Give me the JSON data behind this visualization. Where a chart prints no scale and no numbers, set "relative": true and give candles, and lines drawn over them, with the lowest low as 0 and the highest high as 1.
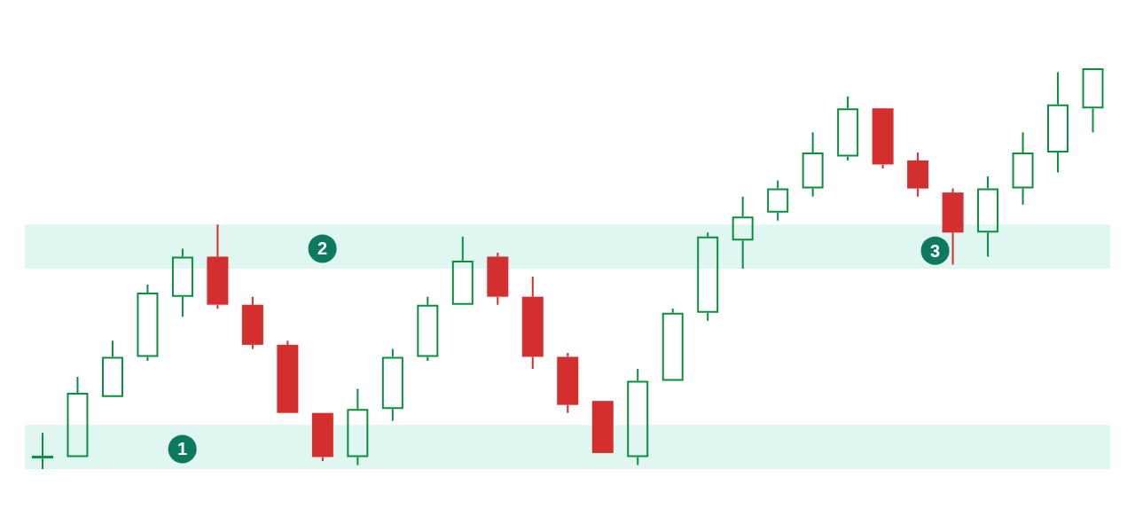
{
  "chart_data": {
    "type": "candlestick",
    "relative": true,
    "categories": [
      null,
      null,
      null,
      null,
      null,
      null,
      null,
      null,
      null,
      null,
      null,
      null,
      null,
      null,
      null,
      null,
      null,
      null,
      null,
      null,
      null,
      null,
      null,
      null,
      null,
      null,
      null,
      null,
      null,
      null,
      null
    ],
    "ohlc": [
      [
        0.03,
        0.09,
        0,
        0.03
      ],
      [
        0.03,
        0.23,
        0.03,
        0.19
      ],
      [
        0.18,
        0.32,
        0.18,
        0.28
      ],
      [
        0.28,
        0.46,
        0.27,
        0.44
      ],
      [
        0.43,
        0.55,
        0.38,
        0.53
      ],
      [
        0.53,
        0.61,
        0.4,
        0.41
      ],
      [
        0.41,
        0.43,
        0.3,
        0.31
      ],
      [
        0.31,
        0.32,
        0.14,
        0.14
      ],
      [
        0.14,
        0.14,
        0.02,
        0.03
      ],
      [
        0.03,
        0.2,
        0.01,
        0.15
      ],
      [
        0.15,
        0.3,
        0.12,
        0.28
      ],
      [
        0.28,
        0.43,
        0.27,
        0.41
      ],
      [
        0.41,
        0.58,
        0.41,
        0.52
      ],
      [
        0.53,
        0.54,
        0.41,
        0.43
      ],
      [
        0.43,
        0.48,
        0.25,
        0.28
      ],
      [
        0.28,
        0.29,
        0.14,
        0.16
      ],
      [
        0.17,
        0.17,
        0.04,
        0.04
      ],
      [
        0.03,
        0.25,
        0.01,
        0.22
      ],
      [
        0.22,
        0.4,
        0.22,
        0.39
      ],
      [
        0.39,
        0.59,
        0.37,
        0.58
      ],
      [
        0.57,
        0.68,
        0.5,
        0.63
      ],
      [
        0.64,
        0.72,
        0.62,
        0.7
      ],
      [
        0.7,
        0.84,
        0.68,
        0.79
      ],
      [
        0.78,
        0.93,
        0.77,
        0.9
      ],
      [
        0.9,
        0.9,
        0.75,
        0.76
      ],
      [
        0.77,
        0.79,
        0.68,
        0.7
      ],
      [
        0.69,
        0.7,
        0.51,
        0.59
      ],
      [
        0.59,
        0.73,
        0.53,
        0.7
      ],
      [
        0.7,
        0.84,
        0.66,
        0.79
      ],
      [
        0.79,
        0.99,
        0.74,
        0.91
      ],
      [
        0.9,
        1,
        0.84,
        1
      ]
    ],
    "colors": [
      "#0b8f3e",
      "#0b8f3e",
      "#0b8f3e",
      "#0b8f3e",
      "#0b8f3e",
      "#d32f2f",
      "#d32f2f",
      "#d32f2f",
      "#d32f2f",
      "#0b8f3e",
      "#0b8f3e",
      "#0b8f3e",
      "#0b8f3e",
      "#d32f2f",
      "#d32f2f",
      "#d32f2f",
      "#d32f2f",
      "#0b8f3e",
      "#0b8f3e",
      "#0b8f3e",
      "#0b8f3e",
      "#0b8f3e",
      "#0b8f3e",
      "#0b8f3e",
      "#d32f2f",
      "#d32f2f",
      "#d32f2f",
      "#0b8f3e",
      "#0b8f3e",
      "#0b8f3e",
      "#0b8f3e"
    ],
    "bands": [
      {
        "axis": "y",
        "from": 0,
        "to": 0.11,
        "color": "#d9f4ee"
      },
      {
        "axis": "y",
        "from": 0.5,
        "to": 0.61,
        "color": "#d9f4ee"
      }
    ],
    "annotations": [
      "1",
      "2",
      "3"
    ],
    "grid": false,
    "legend": false
  }
}
